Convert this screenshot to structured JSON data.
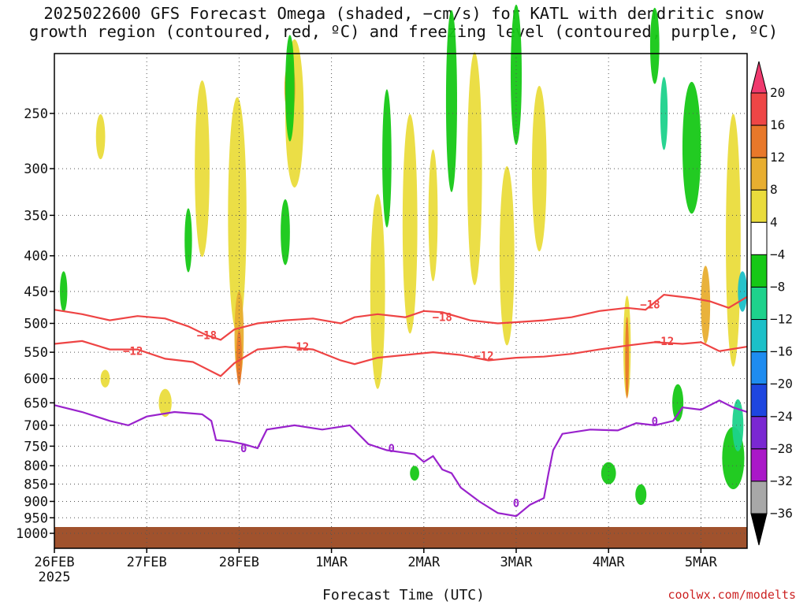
{
  "title_line1": "2025022600 GFS Forecast Omega (shaded, −cm/s) for KATL with dendritic snow",
  "title_line2": "growth region (contoured, red, ºC) and freezing level (contoured, purple, ºC)",
  "credit": "coolwx.com/modelts",
  "chart_data": {
    "type": "heatmap",
    "xlabel": "Forecast Time (UTC)",
    "x_ticks": [
      "26FEB",
      "27FEB",
      "28FEB",
      "1MAR",
      "2MAR",
      "3MAR",
      "4MAR",
      "5MAR"
    ],
    "x_year": "2025",
    "x_range_days": [
      0,
      7.5
    ],
    "y_ticks": [
      250,
      300,
      350,
      400,
      450,
      500,
      550,
      600,
      650,
      700,
      750,
      800,
      850,
      900,
      950,
      1000
    ],
    "y_range_hpa": [
      200,
      1013
    ],
    "grid": true,
    "colorbar": {
      "labels": [
        "20",
        "16",
        "12",
        "8",
        "4",
        "−4",
        "−8",
        "−12",
        "−16",
        "−20",
        "−24",
        "−28",
        "−32",
        "−36"
      ],
      "colors": [
        "#f03a6e",
        "#ee4646",
        "#e8782a",
        "#e8ae30",
        "#eadc3c",
        "#ffffff",
        "#16c816",
        "#1ed28c",
        "#1cc0c8",
        "#1e8cf0",
        "#1e46e0",
        "#7a28d2",
        "#aa18c8",
        "#a8a8a8",
        "#000000"
      ]
    },
    "contour_labels": {
      "dgz_upper": "−18",
      "dgz_lower": "−12",
      "freezing": "0"
    },
    "series": [
      {
        "name": "−18",
        "color": "#ee4444",
        "points": [
          [
            0,
            478
          ],
          [
            0.3,
            485
          ],
          [
            0.6,
            495
          ],
          [
            0.9,
            488
          ],
          [
            1.2,
            492
          ],
          [
            1.45,
            505
          ],
          [
            1.65,
            520
          ],
          [
            1.8,
            528
          ],
          [
            1.95,
            510
          ],
          [
            2.2,
            500
          ],
          [
            2.5,
            495
          ],
          [
            2.8,
            492
          ],
          [
            3.1,
            500
          ],
          [
            3.25,
            490
          ],
          [
            3.5,
            485
          ],
          [
            3.8,
            490
          ],
          [
            4.0,
            480
          ],
          [
            4.2,
            482
          ],
          [
            4.5,
            495
          ],
          [
            4.8,
            500
          ],
          [
            5.0,
            498
          ],
          [
            5.3,
            495
          ],
          [
            5.6,
            490
          ],
          [
            5.9,
            480
          ],
          [
            6.2,
            475
          ],
          [
            6.4,
            478
          ],
          [
            6.6,
            455
          ],
          [
            6.9,
            460
          ],
          [
            7.1,
            465
          ],
          [
            7.3,
            475
          ],
          [
            7.5,
            458
          ]
        ]
      },
      {
        "name": "−12",
        "color": "#ee4444",
        "points": [
          [
            0,
            535
          ],
          [
            0.3,
            530
          ],
          [
            0.6,
            545
          ],
          [
            0.9,
            545
          ],
          [
            1.2,
            562
          ],
          [
            1.5,
            568
          ],
          [
            1.8,
            595
          ],
          [
            1.95,
            570
          ],
          [
            2.2,
            545
          ],
          [
            2.5,
            540
          ],
          [
            2.8,
            545
          ],
          [
            3.1,
            565
          ],
          [
            3.25,
            572
          ],
          [
            3.5,
            560
          ],
          [
            3.8,
            555
          ],
          [
            4.1,
            550
          ],
          [
            4.4,
            555
          ],
          [
            4.7,
            565
          ],
          [
            5.0,
            560
          ],
          [
            5.3,
            558
          ],
          [
            5.6,
            553
          ],
          [
            5.9,
            545
          ],
          [
            6.2,
            538
          ],
          [
            6.5,
            532
          ],
          [
            6.8,
            535
          ],
          [
            7.0,
            532
          ],
          [
            7.2,
            548
          ],
          [
            7.5,
            540
          ]
        ]
      },
      {
        "name": "0",
        "color": "#9922cc",
        "points": [
          [
            0,
            655
          ],
          [
            0.3,
            670
          ],
          [
            0.6,
            690
          ],
          [
            0.8,
            700
          ],
          [
            1.0,
            680
          ],
          [
            1.3,
            670
          ],
          [
            1.6,
            675
          ],
          [
            1.7,
            690
          ],
          [
            1.75,
            735
          ],
          [
            1.9,
            738
          ],
          [
            2.05,
            745
          ],
          [
            2.2,
            755
          ],
          [
            2.3,
            710
          ],
          [
            2.6,
            700
          ],
          [
            2.9,
            710
          ],
          [
            3.2,
            700
          ],
          [
            3.4,
            745
          ],
          [
            3.6,
            760
          ],
          [
            3.9,
            770
          ],
          [
            4.0,
            790
          ],
          [
            4.1,
            775
          ],
          [
            4.2,
            810
          ],
          [
            4.3,
            820
          ],
          [
            4.4,
            860
          ],
          [
            4.6,
            900
          ],
          [
            4.8,
            935
          ],
          [
            5.0,
            945
          ],
          [
            5.15,
            910
          ],
          [
            5.3,
            890
          ],
          [
            5.35,
            820
          ],
          [
            5.4,
            760
          ],
          [
            5.5,
            720
          ],
          [
            5.8,
            710
          ],
          [
            6.1,
            712
          ],
          [
            6.3,
            695
          ],
          [
            6.5,
            700
          ],
          [
            6.7,
            690
          ],
          [
            6.8,
            660
          ],
          [
            7.0,
            665
          ],
          [
            7.2,
            645
          ],
          [
            7.35,
            660
          ],
          [
            7.5,
            670
          ]
        ]
      }
    ]
  }
}
